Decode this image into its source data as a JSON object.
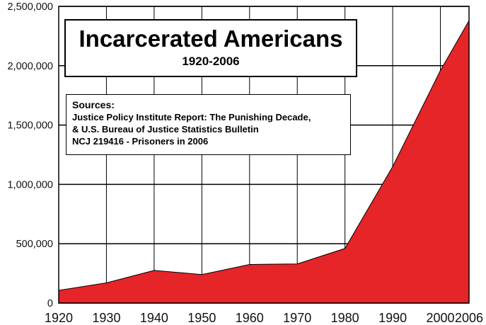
{
  "chart_data": {
    "type": "area",
    "title": "Incarcerated Americans",
    "subtitle": "1920-2006",
    "xlabel": "",
    "ylabel": "",
    "x": [
      1920,
      1930,
      1940,
      1950,
      1960,
      1970,
      1980,
      1990,
      2000,
      2006
    ],
    "x_tick_labels": [
      "1920",
      "1930",
      "1940",
      "1950",
      "1960",
      "1970",
      "1980",
      "1990",
      "2000",
      "2006"
    ],
    "series": [
      {
        "values": [
          107000,
          170000,
          275000,
          240000,
          325000,
          330000,
          460000,
          1150000,
          1960000,
          2380000
        ]
      }
    ],
    "y_ticks": [
      0,
      500000,
      1000000,
      1500000,
      2000000,
      2500000
    ],
    "y_tick_labels": [
      "0",
      "500,000",
      "1,000,000",
      "1,500,000",
      "2,000,000",
      "2,500,000"
    ],
    "xlim": [
      1920,
      2006
    ],
    "ylim": [
      0,
      2500000
    ],
    "grid": true,
    "fill_color": "#e52528",
    "annotation": {
      "heading": "Sources:",
      "lines": [
        "Justice Policy Institute Report: The Punishing Decade,",
        "& U.S. Bureau of Justice Statistics Bulletin",
        "NCJ 219416 - Prisoners in 2006"
      ]
    }
  }
}
